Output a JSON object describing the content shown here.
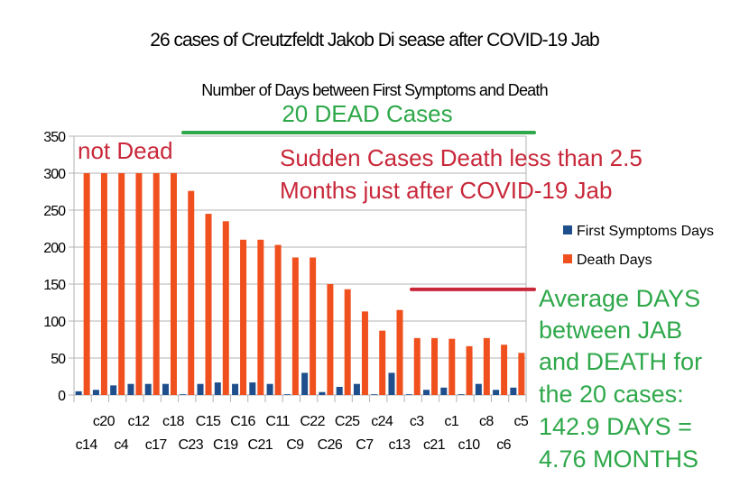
{
  "chart_data": {
    "type": "bar",
    "title": "26 cases of Creutzfeldt Jakob Di sease after COVID-19 Jab",
    "subtitle": "Number of Days between First Symptoms and Death",
    "xlabel": "",
    "ylabel": "",
    "ylim": [
      0,
      350
    ],
    "yticks": [
      0,
      50,
      100,
      150,
      200,
      250,
      300,
      350
    ],
    "grid": true,
    "legend_position": "right",
    "categories": [
      "c14",
      "c20",
      "c4",
      "c12",
      "c17",
      "c18",
      "C23",
      "C15",
      "C19",
      "C16",
      "C21",
      "C11",
      "C9",
      "C22",
      "C26",
      "C25",
      "C7",
      "c24",
      "c13",
      "c3",
      "c21",
      "c1",
      "c10",
      "c8",
      "c6",
      "c5"
    ],
    "series": [
      {
        "name": "First Symptoms Days",
        "color": "#1f4e8c",
        "values": [
          5,
          7,
          13,
          15,
          15,
          15,
          1,
          15,
          17,
          15,
          17,
          15,
          1,
          30,
          4,
          11,
          15,
          1,
          30,
          1,
          7,
          10,
          1,
          15,
          7,
          10
        ]
      },
      {
        "name": "Death Days",
        "color": "#f0501e",
        "values": [
          300,
          300,
          300,
          300,
          300,
          300,
          276,
          245,
          235,
          210,
          210,
          203,
          186,
          186,
          150,
          143,
          113,
          87,
          115,
          77,
          77,
          76,
          66,
          77,
          68,
          57
        ]
      }
    ],
    "annotations": {
      "dead_cases": "20 DEAD Cases",
      "not_dead": "not Dead",
      "sudden_line1": "Sudden Cases Death less than 2.5",
      "sudden_line2": "Months just after COVID-19 Jab",
      "average_lines": [
        "Average DAYS",
        "between JAB",
        "and DEATH for",
        "the 20 cases:",
        "142.9 DAYS =",
        "4.76 MONTHS"
      ],
      "average_value_days": 142.9
    },
    "colors": {
      "red_text": "#c8283a",
      "green_text": "#2ea84a",
      "grid": "#b3b3b3"
    }
  }
}
